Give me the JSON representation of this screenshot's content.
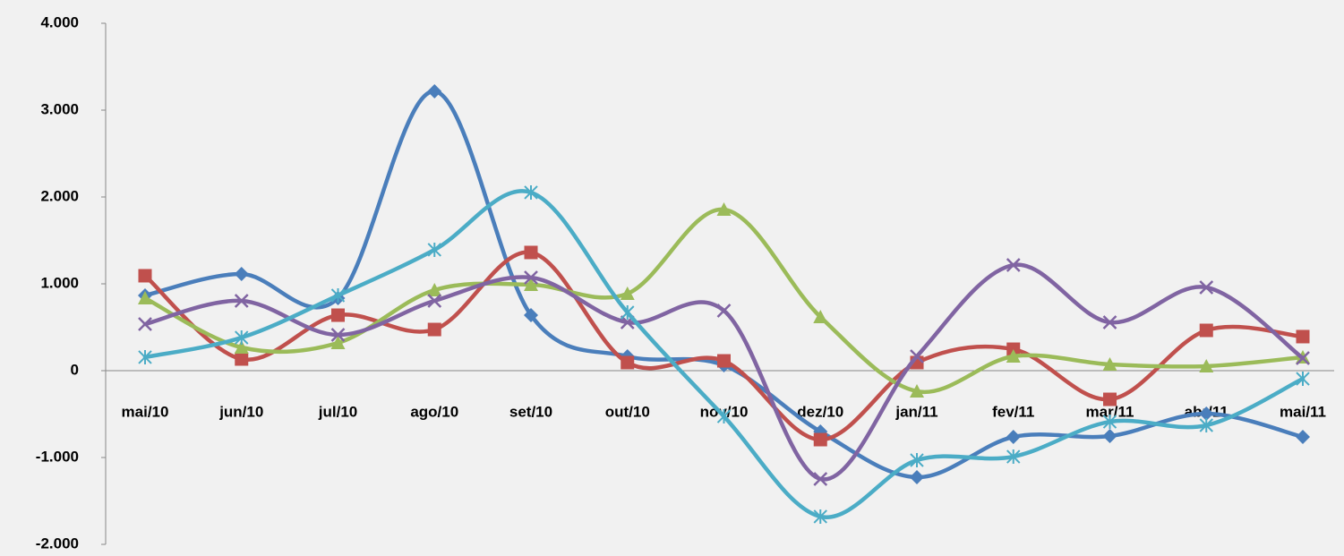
{
  "chart_data": {
    "type": "line",
    "smooth": true,
    "categories": [
      "mai/10",
      "jun/10",
      "jul/10",
      "ago/10",
      "set/10",
      "out/10",
      "nov/10",
      "dez/10",
      "jan/11",
      "fev/11",
      "mar/11",
      "abr/11",
      "mai/11"
    ],
    "series": [
      {
        "color": "#4a7ebb",
        "marker": "diamond",
        "values": [
          866,
          1113,
          835,
          3216,
          639,
          165,
          62,
          -701,
          -1227,
          -763,
          -753,
          -495,
          -763
        ]
      },
      {
        "color": "#c0504d",
        "marker": "square",
        "values": [
          1093,
          134,
          639,
          474,
          1361,
          93,
          113,
          -794,
          93,
          247,
          -330,
          464,
          392
        ]
      },
      {
        "color": "#9bbb59",
        "marker": "triangle",
        "values": [
          835,
          268,
          320,
          928,
          990,
          887,
          1856,
          619,
          -237,
          165,
          72,
          52,
          155
        ]
      },
      {
        "color": "#8064a2",
        "marker": "x",
        "values": [
          536,
          804,
          412,
          804,
          1072,
          557,
          691,
          -1247,
          165,
          1216,
          557,
          959,
          144
        ]
      },
      {
        "color": "#4bacc6",
        "marker": "star",
        "values": [
          155,
          381,
          866,
          1392,
          2052,
          670,
          -526,
          -1680,
          -1031,
          -990,
          -588,
          -629,
          -93
        ]
      }
    ],
    "ylim": [
      -2000,
      4000
    ],
    "yticks": [
      {
        "value": -2000,
        "label": "-2.000"
      },
      {
        "value": -1000,
        "label": "-1.000"
      },
      0,
      {
        "value": 1000,
        "label": "1.000"
      },
      {
        "value": 2000,
        "label": "2.000"
      },
      {
        "value": 3000,
        "label": "3.000"
      },
      {
        "value": 4000,
        "label": "4.000"
      }
    ],
    "grid": false
  }
}
